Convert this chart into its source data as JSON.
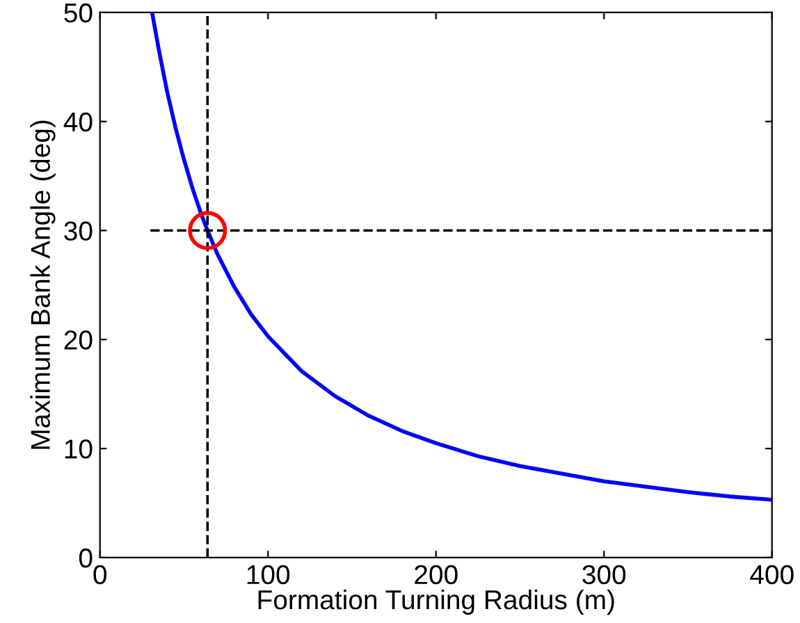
{
  "chart_data": {
    "type": "line",
    "xlabel": "Formation Turning Radius (m)",
    "ylabel": "Maximum Bank Angle (deg)",
    "xlim": [
      0,
      400
    ],
    "xticks": [
      0,
      100,
      200,
      300,
      400
    ],
    "ylim": [
      0,
      50
    ],
    "yticks": [
      0,
      10,
      20,
      30,
      40,
      50
    ],
    "grid": false,
    "legend": false,
    "series": [
      {
        "color": "#0000ff",
        "line_style": "solid",
        "marker": "none",
        "x": [
          31,
          35,
          40,
          45,
          50,
          55,
          60,
          64,
          70,
          80,
          90,
          100,
          120,
          140,
          160,
          180,
          200,
          225,
          250,
          275,
          300,
          325,
          350,
          375,
          400
        ],
        "values": [
          50,
          46.6,
          42.7,
          39.4,
          36.5,
          33.9,
          31.6,
          30,
          27.8,
          24.8,
          22.3,
          20.3,
          17.1,
          14.8,
          13.0,
          11.6,
          10.5,
          9.3,
          8.4,
          7.7,
          7.0,
          6.5,
          6.0,
          5.6,
          5.3
        ]
      },
      {
        "color": "#000000",
        "line_style": "dashed",
        "marker": "none",
        "x": [
          30,
          400
        ],
        "values": [
          30,
          30
        ]
      },
      {
        "color": "#000000",
        "line_style": "dashed",
        "marker": "none",
        "x": [
          64,
          64
        ],
        "values": [
          0,
          50
        ]
      },
      {
        "type": "scatter",
        "color": "#ff0000",
        "marker": "circle",
        "x": [
          64
        ],
        "values": [
          30
        ]
      }
    ]
  }
}
